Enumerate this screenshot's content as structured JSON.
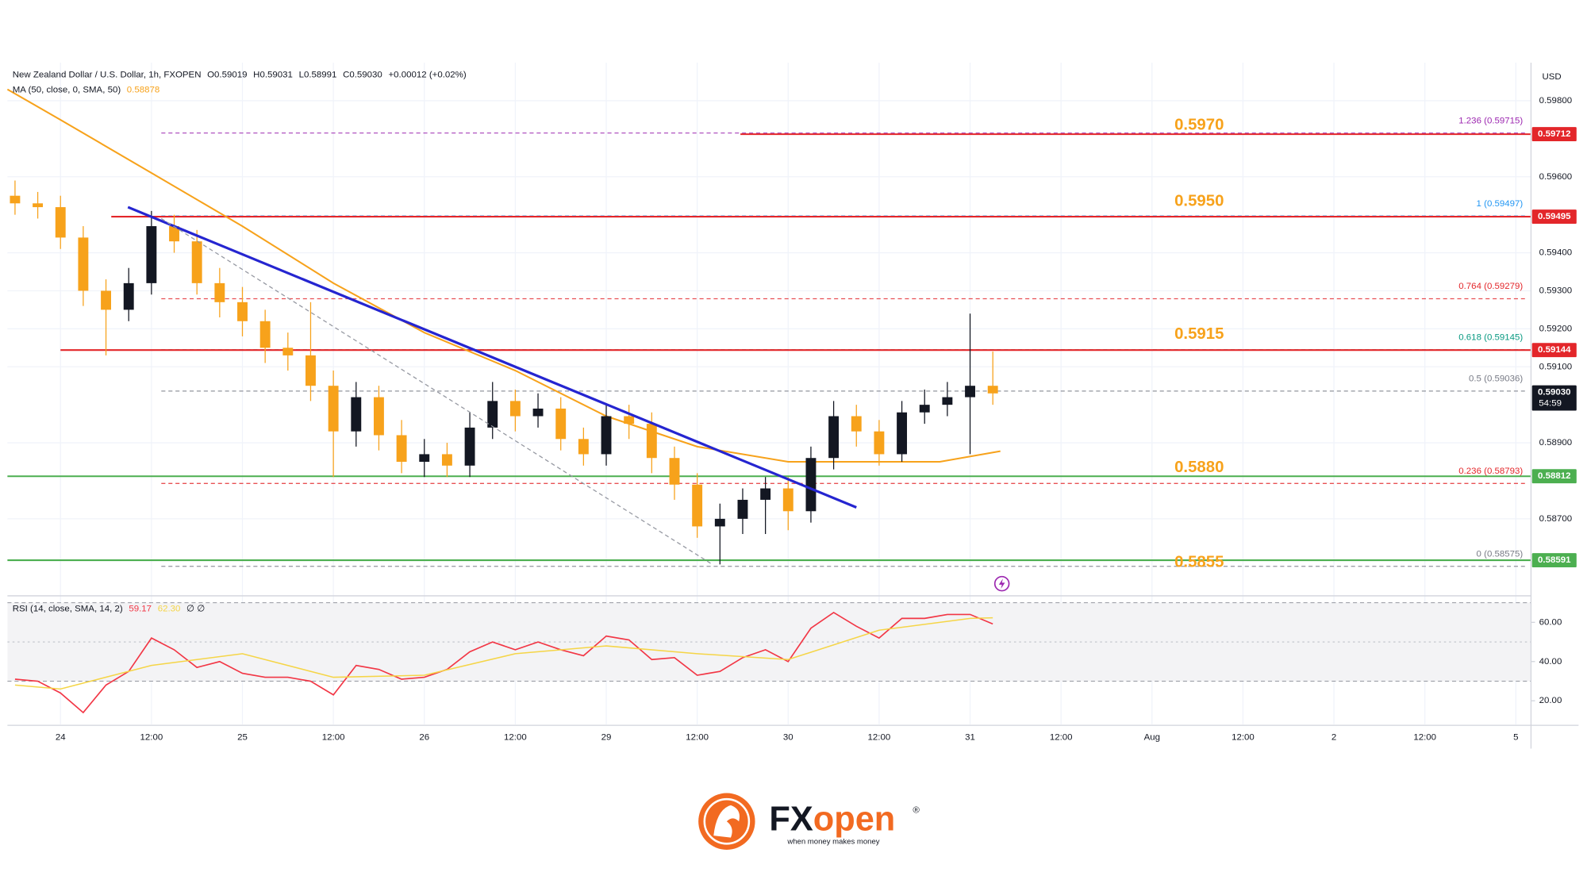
{
  "chart_data": [
    {
      "type": "candlestick",
      "title": "New Zealand Dollar / U.S. Dollar, 1h, FXOPEN",
      "ohlc_readout": [
        "O0.59019",
        "H0.59031",
        "L0.58991",
        "C0.59030",
        "+0.00012 (+0.02%)"
      ],
      "y_axis_label": "USD",
      "xlim": [
        -7,
        194
      ],
      "xticks": [
        {
          "value": 0,
          "label": "24"
        },
        {
          "value": 12,
          "label": "12:00"
        },
        {
          "value": 24,
          "label": "25"
        },
        {
          "value": 36,
          "label": "12:00"
        },
        {
          "value": 48,
          "label": "26"
        },
        {
          "value": 60,
          "label": "12:00"
        },
        {
          "value": 72,
          "label": "29"
        },
        {
          "value": 84,
          "label": "12:00"
        },
        {
          "value": 96,
          "label": "30"
        },
        {
          "value": 108,
          "label": "12:00"
        },
        {
          "value": 120,
          "label": "31"
        },
        {
          "value": 132,
          "label": "12:00"
        },
        {
          "value": 144,
          "label": "Aug"
        },
        {
          "value": 156,
          "label": "12:00"
        },
        {
          "value": 168,
          "label": "2"
        },
        {
          "value": 180,
          "label": "12:00"
        },
        {
          "value": 192,
          "label": "5"
        }
      ],
      "ylim": [
        0.585,
        0.599
      ],
      "yticks": [
        {
          "value": 0.598,
          "label": "0.59800"
        },
        {
          "value": 0.596,
          "label": "0.59600"
        },
        {
          "value": 0.594,
          "label": "0.59400"
        },
        {
          "value": 0.593,
          "label": "0.59300"
        },
        {
          "value": 0.592,
          "label": "0.59200"
        },
        {
          "value": 0.591,
          "label": "0.59100"
        },
        {
          "value": 0.589,
          "label": "0.58900"
        },
        {
          "value": 0.587,
          "label": "0.58700"
        }
      ],
      "grid": true,
      "up_color": "#131722",
      "down_color": "#f7a21b",
      "x": [
        -6,
        -3,
        0,
        3,
        6,
        9,
        12,
        15,
        18,
        21,
        24,
        27,
        30,
        33,
        36,
        39,
        42,
        45,
        48,
        51,
        54,
        57,
        60,
        63,
        66,
        69,
        72,
        75,
        78,
        81,
        84,
        87,
        90,
        93,
        96,
        99,
        102,
        105,
        108,
        111,
        114,
        117,
        120,
        123
      ],
      "open": [
        0.5955,
        0.5953,
        0.5952,
        0.5944,
        0.593,
        0.5925,
        0.5932,
        0.5947,
        0.5943,
        0.5932,
        0.5927,
        0.5922,
        0.5915,
        0.5913,
        0.5905,
        0.5893,
        0.5902,
        0.5892,
        0.5885,
        0.5887,
        0.5884,
        0.5894,
        0.5901,
        0.5897,
        0.5899,
        0.5891,
        0.5887,
        0.5897,
        0.5895,
        0.5886,
        0.5879,
        0.5868,
        0.587,
        0.5875,
        0.5878,
        0.5872,
        0.5886,
        0.5897,
        0.5893,
        0.5887,
        0.5898,
        0.59,
        0.5902,
        0.5905
      ],
      "high": [
        0.5959,
        0.5956,
        0.5955,
        0.5947,
        0.5933,
        0.5936,
        0.5951,
        0.595,
        0.5946,
        0.5936,
        0.5931,
        0.5925,
        0.5919,
        0.5927,
        0.5909,
        0.5906,
        0.5905,
        0.5896,
        0.5891,
        0.589,
        0.5898,
        0.5906,
        0.5904,
        0.5903,
        0.5902,
        0.5894,
        0.59,
        0.59,
        0.5898,
        0.5889,
        0.5882,
        0.5874,
        0.5878,
        0.5881,
        0.5881,
        0.5889,
        0.5901,
        0.59,
        0.5896,
        0.5901,
        0.5904,
        0.5906,
        0.5924,
        0.5914
      ],
      "low": [
        0.595,
        0.5949,
        0.5941,
        0.5926,
        0.5913,
        0.5922,
        0.5929,
        0.594,
        0.5929,
        0.5923,
        0.5918,
        0.5911,
        0.5909,
        0.5901,
        0.5881,
        0.5889,
        0.5888,
        0.5882,
        0.5881,
        0.5881,
        0.5881,
        0.5891,
        0.5893,
        0.5894,
        0.5888,
        0.5884,
        0.5884,
        0.5891,
        0.5882,
        0.5875,
        0.5865,
        0.5858,
        0.5866,
        0.5866,
        0.5867,
        0.5869,
        0.5883,
        0.5889,
        0.5884,
        0.5885,
        0.5895,
        0.5897,
        0.5887,
        0.59
      ],
      "close": [
        0.5953,
        0.5952,
        0.5944,
        0.593,
        0.5925,
        0.5932,
        0.5947,
        0.5943,
        0.5932,
        0.5927,
        0.5922,
        0.5915,
        0.5913,
        0.5905,
        0.5893,
        0.5902,
        0.5892,
        0.5885,
        0.5887,
        0.5884,
        0.5894,
        0.5901,
        0.5897,
        0.5899,
        0.5891,
        0.5887,
        0.5897,
        0.5895,
        0.5886,
        0.5879,
        0.5868,
        0.587,
        0.5875,
        0.5878,
        0.5872,
        0.5886,
        0.5897,
        0.5893,
        0.5887,
        0.5898,
        0.59,
        0.5902,
        0.5905,
        0.5903
      ],
      "ma": {
        "label": "MA (50, close, 0, SMA, 50)",
        "readout": 0.58878,
        "color": "#f7a21b",
        "x": [
          -7,
          0,
          12,
          24,
          36,
          48,
          60,
          72,
          84,
          96,
          108,
          116,
          124
        ],
        "values": [
          0.5983,
          0.5975,
          0.5961,
          0.5947,
          0.5932,
          0.5919,
          0.5909,
          0.5897,
          0.5889,
          0.5885,
          0.5885,
          0.5885,
          0.58878
        ]
      },
      "trendlines": [
        {
          "x": [
            8.9,
            105
          ],
          "values": [
            0.5952,
            0.5873
          ],
          "color": "#2525d0",
          "dashed": false
        },
        {
          "x": [
            13.3,
            86
          ],
          "values": [
            0.5949,
            0.5858
          ],
          "color": "#9598a1",
          "dashed": true
        }
      ],
      "levels": [
        {
          "value": 0.59712,
          "label": "0.59712",
          "color": "#e3262a",
          "x_start": 89.7
        },
        {
          "value": 0.59495,
          "label": "0.59495",
          "color": "#e3262a",
          "x_start": 6.7
        },
        {
          "value": 0.59144,
          "label": "0.59144",
          "color": "#e3262a",
          "x_start": 0
        },
        {
          "value": 0.58812,
          "label": "0.58812",
          "color": "#4caf50",
          "x_start": -7
        },
        {
          "value": 0.58591,
          "label": "0.58591",
          "color": "#4caf50",
          "x_start": -7
        }
      ],
      "last_price": {
        "value": 0.5903,
        "label": "0.59030",
        "countdown": "54:59",
        "color": "#131722"
      },
      "annotations": [
        {
          "value": 0.597,
          "label": "0.5970"
        },
        {
          "value": 0.595,
          "label": "0.5950"
        },
        {
          "value": 0.5915,
          "label": "0.5915"
        },
        {
          "value": 0.588,
          "label": "0.5880"
        },
        {
          "value": 0.5855,
          "label": "0.5855"
        }
      ],
      "annotation_color": "#f7a21b",
      "fib": {
        "x_start": 13.3,
        "levels": [
          {
            "value": 0.59715,
            "label": "1.236 (0.59715)",
            "color": "#9c27b0"
          },
          {
            "value": 0.59497,
            "label": "1 (0.59497)",
            "color": "#2196f3"
          },
          {
            "value": 0.59279,
            "label": "0.764 (0.59279)",
            "color": "#e3262a"
          },
          {
            "value": 0.59145,
            "label": "0.618 (0.59145)",
            "color": "#089981"
          },
          {
            "value": 0.59036,
            "label": "0.5 (0.59036)",
            "color": "#787b86"
          },
          {
            "value": 0.58793,
            "label": "0.236 (0.58793)",
            "color": "#e3262a"
          },
          {
            "value": 0.58575,
            "label": "0 (0.58575)",
            "color": "#787b86"
          }
        ]
      }
    },
    {
      "type": "line",
      "title": "RSI (14, close, SMA, 14, 2)",
      "readouts": [
        59.17,
        {
          "value": 62.3,
          "label": "62.30"
        }
      ],
      "flags": "∅ ∅",
      "xlim": [
        -7,
        194
      ],
      "ylim": [
        8,
        73
      ],
      "yticks": [
        {
          "value": 60,
          "label": "60.00"
        },
        {
          "value": 40,
          "label": "40.00"
        },
        {
          "value": 20,
          "label": "20.00"
        }
      ],
      "band": [
        30,
        70
      ],
      "midline": 50,
      "series": [
        {
          "color": "#f23645",
          "x": [
            -6,
            -3,
            0,
            3,
            6,
            9,
            12,
            15,
            18,
            21,
            24,
            27,
            30,
            33,
            36,
            39,
            42,
            45,
            48,
            51,
            54,
            57,
            60,
            63,
            66,
            69,
            72,
            75,
            78,
            81,
            84,
            87,
            90,
            93,
            96,
            99,
            102,
            105,
            108,
            111,
            114,
            117,
            120,
            123
          ],
          "values": [
            31,
            30,
            24,
            14,
            28,
            35,
            52,
            46,
            37,
            40,
            34,
            32,
            32,
            30,
            23,
            38,
            36,
            31,
            32,
            36,
            45,
            50,
            46,
            50,
            46,
            43,
            53,
            51,
            41,
            42,
            33,
            35,
            42,
            46,
            40,
            57,
            65,
            58,
            52,
            62,
            62,
            64,
            64,
            59.17
          ]
        },
        {
          "color": "#f5d547",
          "x": [
            -6,
            0,
            12,
            24,
            36,
            48,
            60,
            72,
            84,
            96,
            108,
            120,
            123
          ],
          "values": [
            28,
            26,
            38,
            44,
            32,
            33,
            44,
            48,
            44,
            41,
            56,
            62,
            62.3
          ]
        }
      ]
    }
  ],
  "logo": {
    "name_dark": "FX",
    "name_accent": "open",
    "mark": "®",
    "tagline": "when money makes money"
  }
}
